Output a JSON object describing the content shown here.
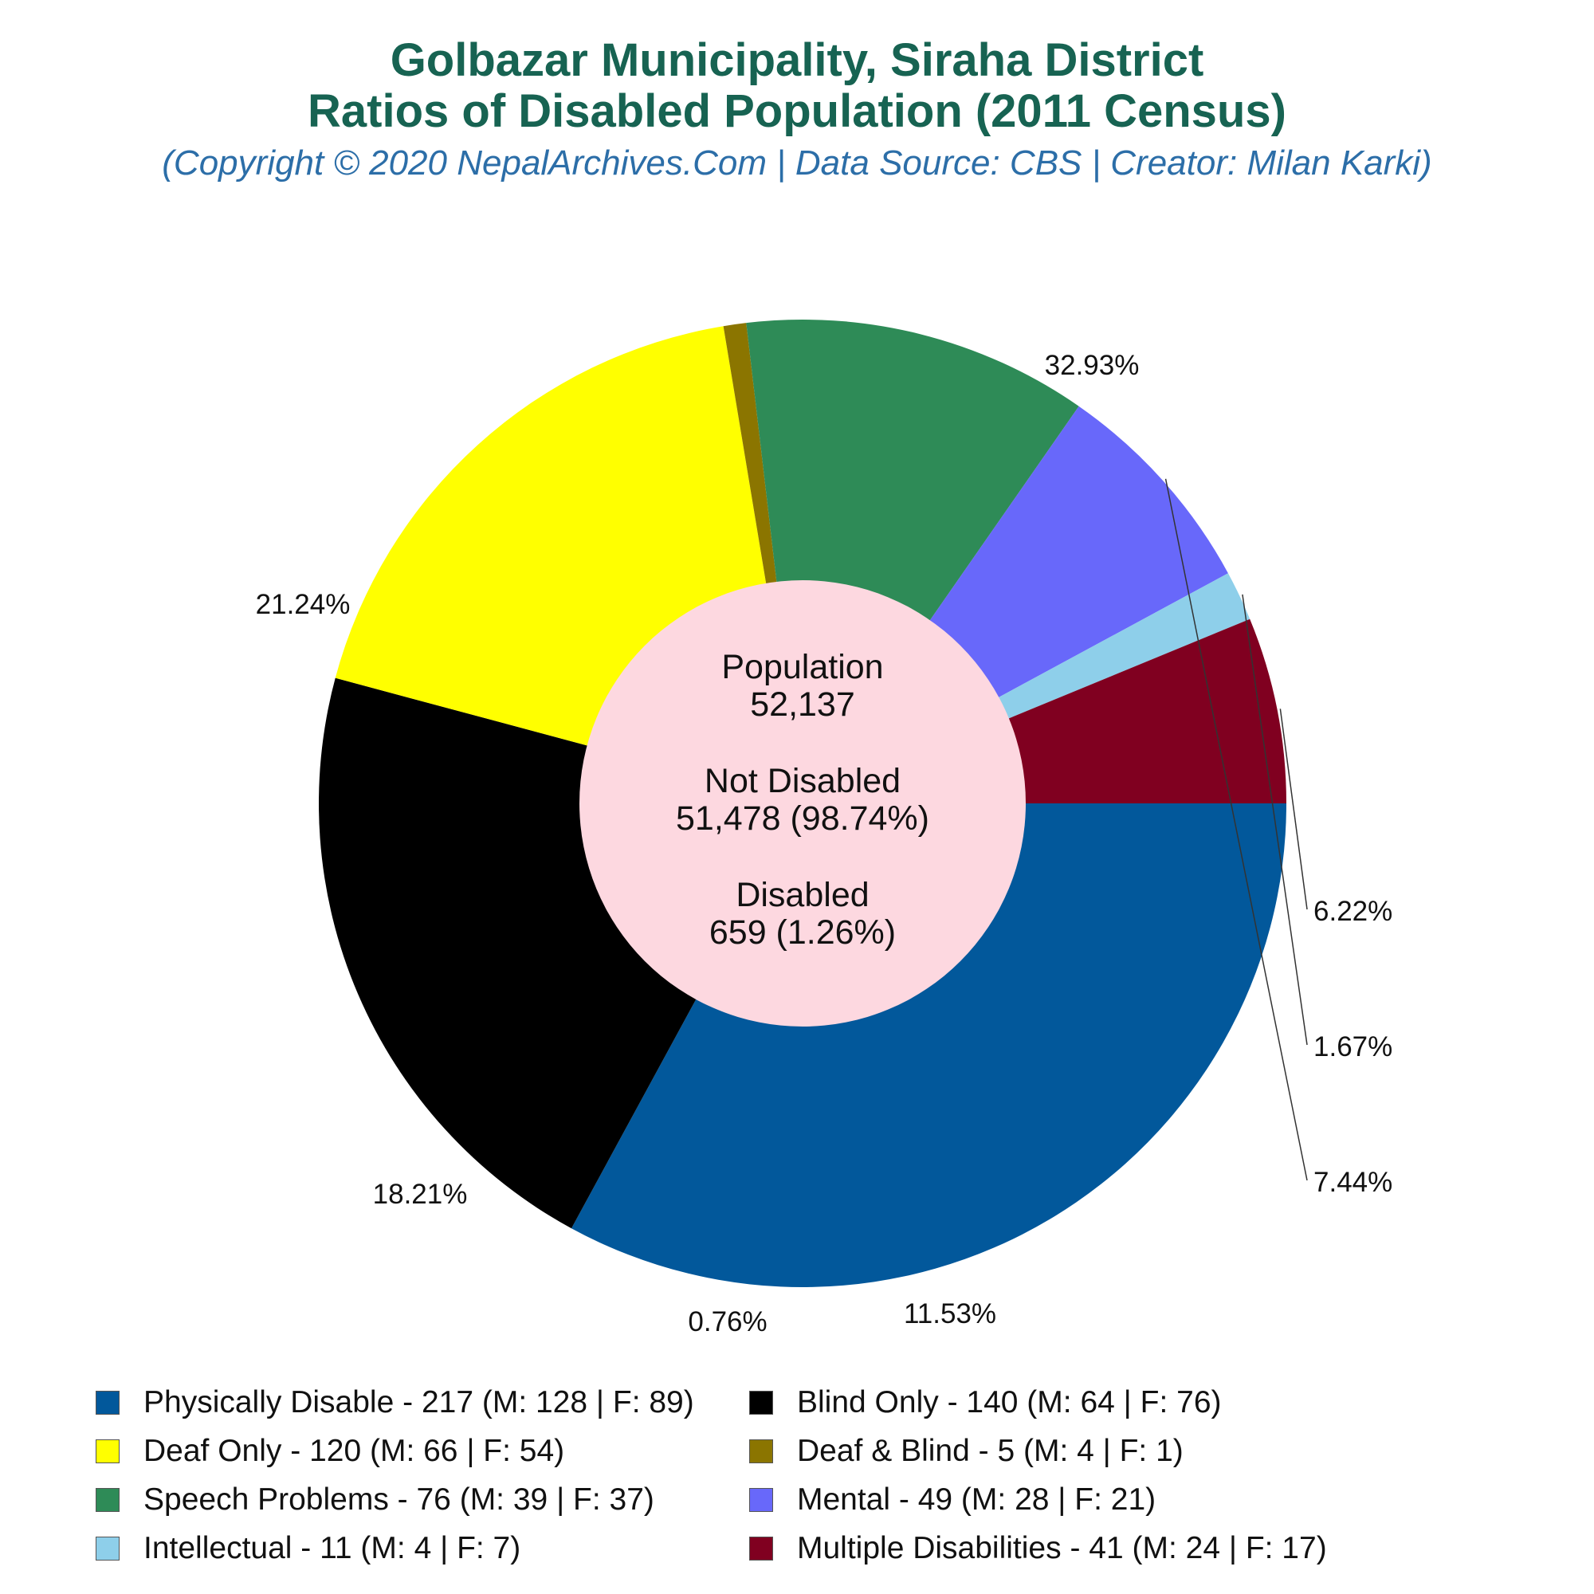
{
  "title_line1": "Golbazar Municipality, Siraha District",
  "title_line2": "Ratios of Disabled Population (2011 Census)",
  "subtitle": "(Copyright © 2020 NepalArchives.Com | Data Source: CBS | Creator: Milan Karki)",
  "center": {
    "population_label": "Population",
    "population_value": "52,137",
    "not_disabled_label": "Not Disabled",
    "not_disabled_value": "51,478 (98.74%)",
    "disabled_label": "Disabled",
    "disabled_value": "659 (1.26%)",
    "fill": "#fdd8e0"
  },
  "chart_data": {
    "type": "pie",
    "style": "donut",
    "start": "3 o'clock, clockwise",
    "slices": [
      {
        "name": "Physically Disable",
        "value": 217,
        "male": 128,
        "female": 89,
        "percent_label": "32.93%",
        "color": "#02589b",
        "legend": "Physically Disable - 217 (M: 128 | F: 89)"
      },
      {
        "name": "Blind Only",
        "value": 140,
        "male": 64,
        "female": 76,
        "percent_label": "21.24%",
        "color": "#000000",
        "legend": "Blind Only - 140 (M: 64 | F: 76)"
      },
      {
        "name": "Deaf Only",
        "value": 120,
        "male": 66,
        "female": 54,
        "percent_label": "18.21%",
        "color": "#ffff00",
        "legend": "Deaf Only - 120 (M: 66 | F: 54)"
      },
      {
        "name": "Deaf & Blind",
        "value": 5,
        "male": 4,
        "female": 1,
        "percent_label": "0.76%",
        "color": "#8b7500",
        "legend": "Deaf & Blind - 5 (M: 4 | F: 1)"
      },
      {
        "name": "Speech Problems",
        "value": 76,
        "male": 39,
        "female": 37,
        "percent_label": "11.53%",
        "color": "#2e8b57",
        "legend": "Speech Problems - 76 (M: 39 | F: 37)"
      },
      {
        "name": "Mental",
        "value": 49,
        "male": 28,
        "female": 21,
        "percent_label": "7.44%",
        "color": "#6868fa",
        "legend": "Mental - 49 (M: 28 | F: 21)"
      },
      {
        "name": "Intellectual",
        "value": 11,
        "male": 4,
        "female": 7,
        "percent_label": "1.67%",
        "color": "#8ecfea",
        "legend": "Intellectual - 11 (M: 4 | F: 7)"
      },
      {
        "name": "Multiple Disabilities",
        "value": 41,
        "male": 24,
        "female": 17,
        "percent_label": "6.22%",
        "color": "#800020",
        "legend": "Multiple Disabilities - 41 (M: 24 | F: 17)"
      }
    ],
    "legend_placement": "bottom, two columns"
  }
}
